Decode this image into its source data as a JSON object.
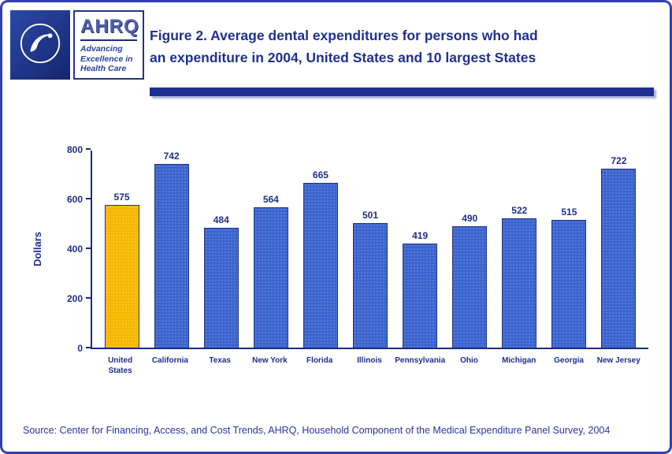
{
  "page": {
    "title_lines": [
      "Figure 2. Average dental expenditures for persons who had",
      "an expenditure in 2004, United States and 10 largest States"
    ],
    "source": "Source: Center for Financing, Access, and Cost Trends, AHRQ, Household Component of the Medical Expenditure Panel Survey, 2004"
  },
  "header": {
    "ahrq_acronym": "AHRQ",
    "ahrq_tagline": [
      "Advancing",
      "Excellence in",
      "Health Care"
    ],
    "icons": {
      "hhs_seal": "hhs-eagle-seal"
    }
  },
  "chart_data": {
    "type": "bar",
    "title": "Figure 2. Average dental expenditures for persons who had an expenditure in 2004, United States and 10 largest States",
    "categories": [
      "United States",
      "California",
      "Texas",
      "New York",
      "Florida",
      "Illinois",
      "Pennsylvania",
      "Ohio",
      "Michigan",
      "Georgia",
      "New Jersey"
    ],
    "values": [
      575,
      742,
      484,
      564,
      665,
      501,
      419,
      490,
      522,
      515,
      722
    ],
    "xlabel": "",
    "ylabel": "Dollars",
    "ylim": [
      0,
      800
    ],
    "yticks": [
      0,
      200,
      400,
      600,
      800
    ],
    "grid": false,
    "legend": "none",
    "bar_color": "#3a63ce",
    "highlight": {
      "index": 0,
      "color": "#f5b800",
      "note": "United States bar highlighted gold"
    },
    "axis_color": "#1b2b7e",
    "label_color": "#1f2e8c"
  }
}
